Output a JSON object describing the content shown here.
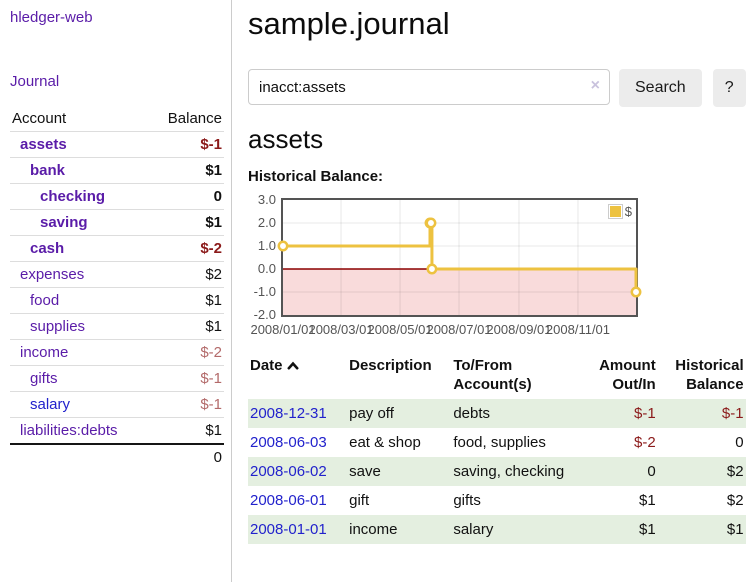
{
  "app_title": "hledger-web",
  "sidebar": {
    "nav_journal": "Journal",
    "table": {
      "headers": {
        "account": "Account",
        "balance": "Balance"
      },
      "rows": [
        {
          "account": "assets",
          "balance": "$-1"
        },
        {
          "account": "bank",
          "balance": "$1"
        },
        {
          "account": "checking",
          "balance": "0"
        },
        {
          "account": "saving",
          "balance": "$1"
        },
        {
          "account": "cash",
          "balance": "$-2"
        },
        {
          "account": "expenses",
          "balance": "$2"
        },
        {
          "account": "food",
          "balance": "$1"
        },
        {
          "account": "supplies",
          "balance": "$1"
        },
        {
          "account": "income",
          "balance": "$-2"
        },
        {
          "account": "gifts",
          "balance": "$-1"
        },
        {
          "account": "salary",
          "balance": "$-1"
        },
        {
          "account": "liabilities:debts",
          "balance": "$1"
        }
      ],
      "total": "0"
    }
  },
  "main": {
    "title": "sample.journal",
    "search": {
      "value": "inacct:assets",
      "clear_icon": "×",
      "button": "Search",
      "help": "?"
    },
    "account_heading": "assets",
    "register": {
      "headers": {
        "date": "Date",
        "description": "Description",
        "tofrom": "To/From Account(s)",
        "amount": "Amount Out/In",
        "balance": "Historical Balance"
      },
      "rows": [
        {
          "date": "2008-12-31",
          "description": "pay off",
          "accounts": "debts",
          "amount": "$-1",
          "balance": "$-1"
        },
        {
          "date": "2008-06-03",
          "description": "eat & shop",
          "accounts": "food, supplies",
          "amount": "$-2",
          "balance": "0"
        },
        {
          "date": "2008-06-02",
          "description": "save",
          "accounts": "saving, checking",
          "amount": "0",
          "balance": "$2"
        },
        {
          "date": "2008-06-01",
          "description": "gift",
          "accounts": "gifts",
          "amount": "$1",
          "balance": "$2"
        },
        {
          "date": "2008-01-01",
          "description": "income",
          "accounts": "salary",
          "amount": "$1",
          "balance": "$1"
        }
      ]
    }
  },
  "colors": {
    "link_purple": "#5a1ca8",
    "link_blue": "#2222cc",
    "negative_strong": "#8b1a1a",
    "negative_soft": "#b36a6a",
    "row_green": "#e4efe0",
    "series_yellow": "#edc240"
  },
  "chart_data": {
    "type": "line",
    "title": "Historical Balance:",
    "x_ticks": [
      "2008/01/01",
      "2008/03/01",
      "2008/05/01",
      "2008/07/01",
      "2008/09/01",
      "2008/11/01"
    ],
    "y_ticks": [
      "3.0",
      "2.0",
      "1.0",
      "0.0",
      "-1.0",
      "-2.0"
    ],
    "ylim": [
      -2,
      3
    ],
    "x_range": [
      "2008-01-01",
      "2008-12-31"
    ],
    "grid": true,
    "legend_position": "top-right",
    "series": [
      {
        "name": "$",
        "color": "#edc240",
        "style": "step-line-with-points",
        "points": [
          [
            "2008-01-01",
            1
          ],
          [
            "2008-06-01",
            2
          ],
          [
            "2008-06-02",
            2
          ],
          [
            "2008-06-03",
            0
          ],
          [
            "2008-12-31",
            -1
          ]
        ]
      }
    ],
    "negative_region_color": "#f9dbdb",
    "zero_line_color": "#8b0000"
  }
}
